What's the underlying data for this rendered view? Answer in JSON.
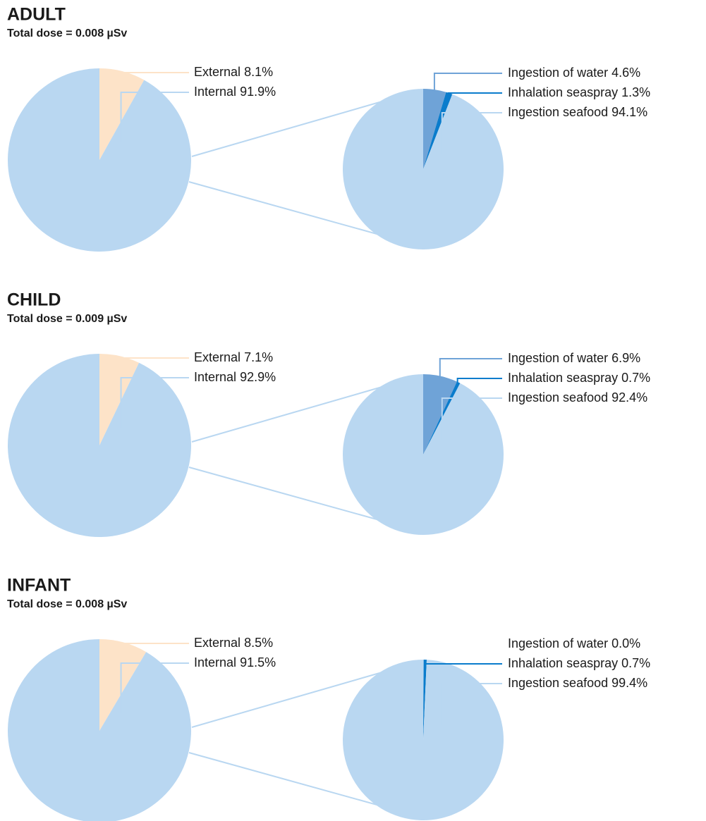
{
  "chart_data": [
    {
      "type": "pie",
      "title": "ADULT",
      "subtitle": "Total dose = 0.008 µSv",
      "categories": [
        "External",
        "Internal"
      ],
      "values": [
        8.1,
        91.9
      ],
      "value_labels": [
        "8.1%",
        "91.9%"
      ],
      "colors": [
        "#fde3c8",
        "#b9d7f1"
      ],
      "breakdown": {
        "categories": [
          "Ingestion of water",
          "Inhalation seaspray",
          "Ingestion seafood"
        ],
        "values": [
          4.6,
          1.3,
          94.1
        ],
        "value_labels": [
          "4.6%",
          "1.3%",
          "94.1%"
        ],
        "colors": [
          "#6fa3d7",
          "#0a7ccc",
          "#b9d7f1"
        ]
      }
    },
    {
      "type": "pie",
      "title": "CHILD",
      "subtitle": "Total dose = 0.009 µSv",
      "categories": [
        "External",
        "Internal"
      ],
      "values": [
        7.1,
        92.9
      ],
      "value_labels": [
        "7.1%",
        "92.9%"
      ],
      "colors": [
        "#fde3c8",
        "#b9d7f1"
      ],
      "breakdown": {
        "categories": [
          "Ingestion of water",
          "Inhalation seaspray",
          "Ingestion seafood"
        ],
        "values": [
          6.9,
          0.7,
          92.4
        ],
        "value_labels": [
          "6.9%",
          "0.7%",
          "92.4%"
        ],
        "colors": [
          "#6fa3d7",
          "#0a7ccc",
          "#b9d7f1"
        ]
      }
    },
    {
      "type": "pie",
      "title": "INFANT",
      "subtitle": "Total dose = 0.008 µSv",
      "categories": [
        "External",
        "Internal"
      ],
      "values": [
        8.5,
        91.5
      ],
      "value_labels": [
        "8.5%",
        "91.5%"
      ],
      "colors": [
        "#fde3c8",
        "#b9d7f1"
      ],
      "breakdown": {
        "categories": [
          "Ingestion of water",
          "Inhalation seaspray",
          "Ingestion seafood"
        ],
        "values": [
          0.0,
          0.7,
          99.4
        ],
        "value_labels": [
          "0.0%",
          "0.7%",
          "99.4%"
        ],
        "colors": [
          "#6fa3d7",
          "#0a7ccc",
          "#b9d7f1"
        ]
      }
    }
  ]
}
